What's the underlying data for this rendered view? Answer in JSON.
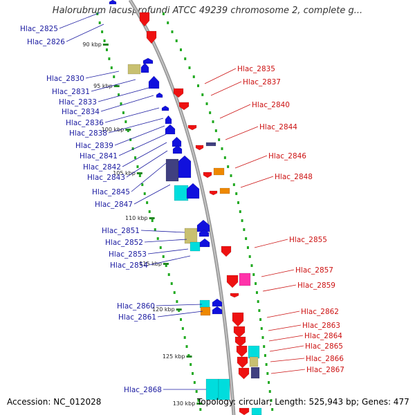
{
  "title": "Halorubrum lacusprofundi ATCC 49239 chromosome 2, complete g...",
  "accession": "Accession: NC_012028",
  "footer": "Topology: circular; Length: 525,943 bp; Genes: 477",
  "colors": {
    "backbone": "#888888",
    "forward_gene": "#ee1111",
    "reverse_gene": "#1111dd",
    "gc_skew_dots": "#22aa22",
    "cyan": "#00dddd",
    "khaki": "#c8c070",
    "navy": "#404080",
    "orange": "#ee8800",
    "magenta": "#ff33aa",
    "left_label": "#1a1aa0",
    "right_label": "#cc1111"
  },
  "kbp_ticks": [
    "90 kbp",
    "95 kbp",
    "100 kbp",
    "105 kbp",
    "110 kbp",
    "115 kbp",
    "120 kbp",
    "125 kbp",
    "130 kbp"
  ],
  "left_labels": [
    "Hlac_2825",
    "Hlac_2826",
    "Hlac_2830",
    "Hlac_2831",
    "Hlac_2833",
    "Hlac_2834",
    "Hlac_2836",
    "Hlac_2838",
    "Hlac_2839",
    "Hlac_2841",
    "Hlac_2842",
    "Hlac_2843",
    "Hlac_2845",
    "Hlac_2847",
    "Hlac_2851",
    "Hlac_2852",
    "Hlac_2853",
    "Hlac_2854",
    "Hlac_2860",
    "Hlac_2861",
    "Hlac_2868"
  ],
  "right_labels": [
    "Hlac_2835",
    "Hlac_2837",
    "Hlac_2840",
    "Hlac_2844",
    "Hlac_2846",
    "Hlac_2848",
    "Hlac_2855",
    "Hlac_2857",
    "Hlac_2859",
    "Hlac_2862",
    "Hlac_2863",
    "Hlac_2864",
    "Hlac_2865",
    "Hlac_2866",
    "Hlac_2867"
  ]
}
